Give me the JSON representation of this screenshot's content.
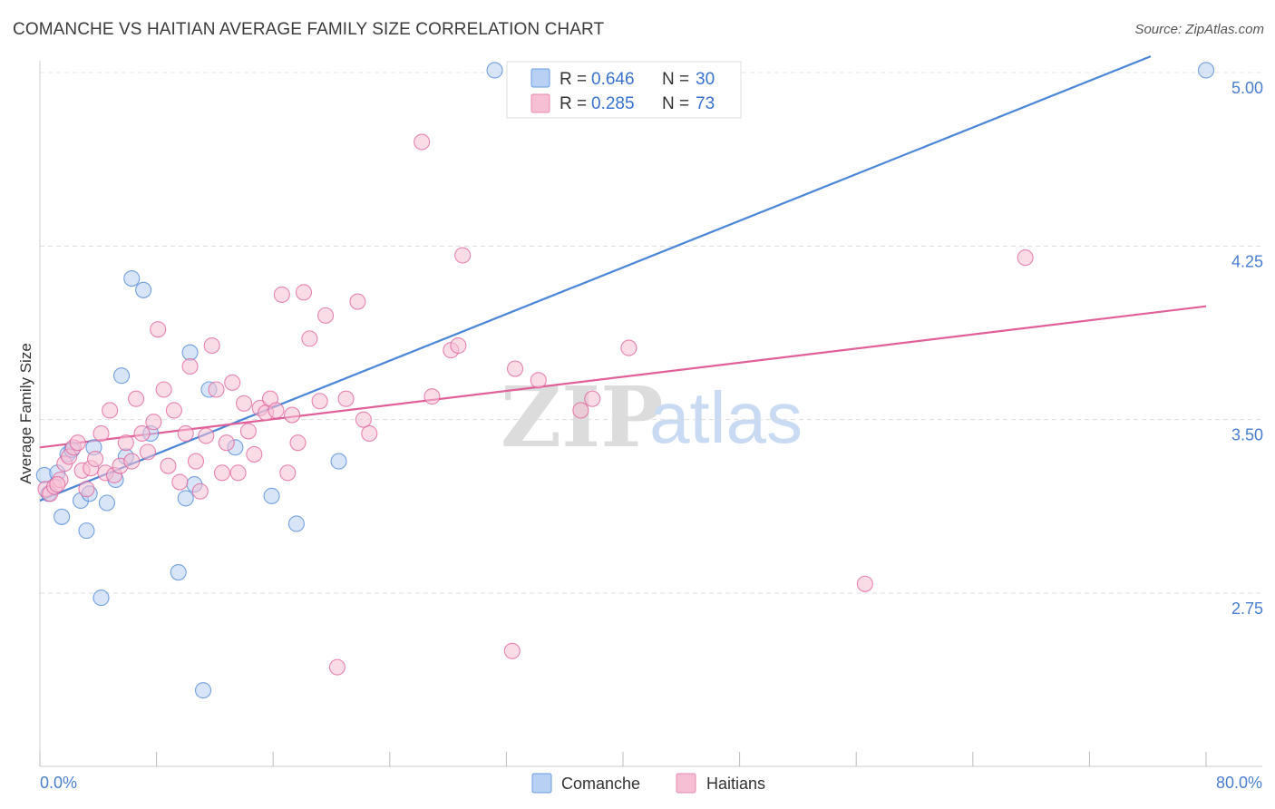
{
  "title": "COMANCHE VS HAITIAN AVERAGE FAMILY SIZE CORRELATION CHART",
  "source": "Source: ZipAtlas.com",
  "watermark": {
    "zip": "ZIP",
    "atlas": "atlas"
  },
  "colors": {
    "comanche": "#4a86d8",
    "comanche_fill": "#b8d0f3",
    "haitians": "#e0609a",
    "haitians_fill": "#f6bfd3",
    "axis_label": "#4a7fd0",
    "grid": "#dddddd"
  },
  "legend": {
    "rows": [
      {
        "r_label": "R =",
        "r_value": "0.646",
        "n_label": "N =",
        "n_value": "30"
      },
      {
        "r_label": "R =",
        "r_value": "0.285",
        "n_label": "N =",
        "n_value": "73"
      }
    ]
  },
  "chart_data": {
    "type": "scatter",
    "title": "COMANCHE VS HAITIAN AVERAGE FAMILY SIZE CORRELATION CHART",
    "xlabel": "",
    "ylabel": "Average Family Size",
    "xlim": [
      0,
      80
    ],
    "ylim": [
      2.0,
      5.1
    ],
    "x_tick_labels": [
      "0.0%",
      "80.0%"
    ],
    "y_ticks": [
      2.75,
      3.5,
      4.25,
      5.0
    ],
    "y_tick_labels": [
      "2.75",
      "3.50",
      "4.25",
      "5.00"
    ],
    "grid": true,
    "series": [
      {
        "name": "Comanche",
        "r": 0.646,
        "n": 30,
        "trend": {
          "x0": 0,
          "y0": 3.15,
          "x1": 76.2,
          "y1": 5.07
        },
        "points": [
          [
            0.3,
            3.26
          ],
          [
            0.6,
            3.18
          ],
          [
            1.2,
            3.27
          ],
          [
            1.5,
            3.08
          ],
          [
            1.9,
            3.35
          ],
          [
            2.2,
            3.37
          ],
          [
            2.8,
            3.15
          ],
          [
            3.2,
            3.02
          ],
          [
            3.4,
            3.18
          ],
          [
            3.7,
            3.38
          ],
          [
            4.2,
            2.73
          ],
          [
            4.6,
            3.14
          ],
          [
            5.2,
            3.24
          ],
          [
            5.6,
            3.69
          ],
          [
            5.9,
            3.34
          ],
          [
            6.3,
            4.11
          ],
          [
            7.1,
            4.06
          ],
          [
            7.6,
            3.44
          ],
          [
            9.5,
            2.84
          ],
          [
            10.0,
            3.16
          ],
          [
            10.3,
            3.79
          ],
          [
            10.6,
            3.22
          ],
          [
            11.2,
            2.33
          ],
          [
            11.6,
            3.63
          ],
          [
            13.4,
            3.38
          ],
          [
            15.9,
            3.17
          ],
          [
            17.6,
            3.05
          ],
          [
            20.5,
            3.32
          ],
          [
            31.2,
            5.01
          ],
          [
            80.0,
            5.01
          ]
        ]
      },
      {
        "name": "Haitians",
        "r": 0.285,
        "n": 73,
        "trend": {
          "x0": 0,
          "y0": 3.38,
          "x1": 80,
          "y1": 3.99
        },
        "points": [
          [
            0.4,
            3.2
          ],
          [
            0.7,
            3.18
          ],
          [
            1.0,
            3.21
          ],
          [
            1.4,
            3.24
          ],
          [
            1.7,
            3.31
          ],
          [
            2.0,
            3.34
          ],
          [
            2.3,
            3.38
          ],
          [
            2.6,
            3.4
          ],
          [
            2.9,
            3.28
          ],
          [
            3.2,
            3.2
          ],
          [
            3.5,
            3.29
          ],
          [
            3.8,
            3.33
          ],
          [
            4.2,
            3.44
          ],
          [
            4.5,
            3.27
          ],
          [
            4.8,
            3.54
          ],
          [
            5.1,
            3.26
          ],
          [
            5.5,
            3.3
          ],
          [
            5.9,
            3.4
          ],
          [
            6.3,
            3.32
          ],
          [
            6.6,
            3.59
          ],
          [
            7.0,
            3.44
          ],
          [
            7.4,
            3.36
          ],
          [
            7.8,
            3.49
          ],
          [
            8.1,
            3.89
          ],
          [
            8.5,
            3.63
          ],
          [
            8.8,
            3.3
          ],
          [
            9.2,
            3.54
          ],
          [
            9.6,
            3.23
          ],
          [
            10.0,
            3.44
          ],
          [
            10.3,
            3.73
          ],
          [
            10.7,
            3.32
          ],
          [
            11.0,
            3.19
          ],
          [
            11.4,
            3.43
          ],
          [
            11.8,
            3.82
          ],
          [
            12.1,
            3.63
          ],
          [
            12.5,
            3.27
          ],
          [
            12.8,
            3.4
          ],
          [
            13.2,
            3.66
          ],
          [
            13.6,
            3.27
          ],
          [
            14.0,
            3.57
          ],
          [
            14.3,
            3.45
          ],
          [
            14.7,
            3.35
          ],
          [
            15.1,
            3.55
          ],
          [
            15.5,
            3.53
          ],
          [
            15.8,
            3.59
          ],
          [
            16.2,
            3.54
          ],
          [
            16.6,
            4.04
          ],
          [
            17.0,
            3.27
          ],
          [
            17.3,
            3.52
          ],
          [
            17.7,
            3.4
          ],
          [
            18.1,
            4.05
          ],
          [
            18.5,
            3.85
          ],
          [
            19.2,
            3.58
          ],
          [
            19.6,
            3.95
          ],
          [
            20.4,
            2.43
          ],
          [
            21.0,
            3.59
          ],
          [
            21.8,
            4.01
          ],
          [
            22.2,
            3.5
          ],
          [
            22.6,
            3.44
          ],
          [
            26.2,
            4.7
          ],
          [
            26.9,
            3.6
          ],
          [
            28.2,
            3.8
          ],
          [
            28.7,
            3.82
          ],
          [
            29.0,
            4.21
          ],
          [
            32.4,
            2.5
          ],
          [
            32.6,
            3.72
          ],
          [
            34.2,
            3.67
          ],
          [
            37.1,
            3.54
          ],
          [
            37.9,
            3.59
          ],
          [
            40.4,
            3.81
          ],
          [
            56.6,
            2.79
          ],
          [
            67.6,
            4.2
          ],
          [
            1.2,
            3.22
          ]
        ]
      }
    ]
  }
}
